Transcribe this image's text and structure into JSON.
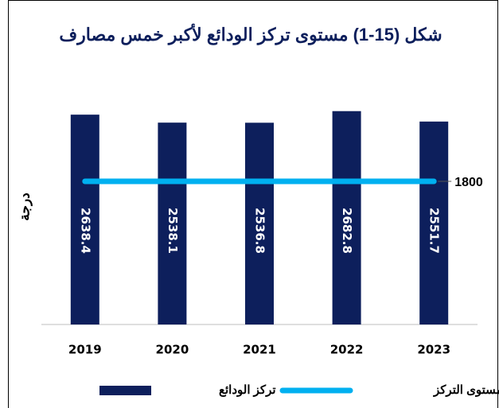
{
  "chart_data": {
    "type": "bar",
    "title": "شكل (15-1) مستوى تركز الودائع لأكبر خمس مصارف",
    "y_label": "درجة",
    "categories": [
      "2019",
      "2020",
      "2021",
      "2022",
      "2023"
    ],
    "series": [
      {
        "name": "تركز الودائع",
        "color": "#0d1f5c",
        "type": "bar",
        "values": [
          2638.4,
          2538.1,
          2536.8,
          2682.8,
          2551.7
        ]
      },
      {
        "name": "معيار مستوى التركز",
        "color": "#00b0f0",
        "type": "line",
        "values": [
          1800,
          1800,
          1800,
          1800,
          1800
        ]
      }
    ],
    "ylim": [
      0,
      3000
    ],
    "grid": false,
    "legend": "bottom"
  }
}
